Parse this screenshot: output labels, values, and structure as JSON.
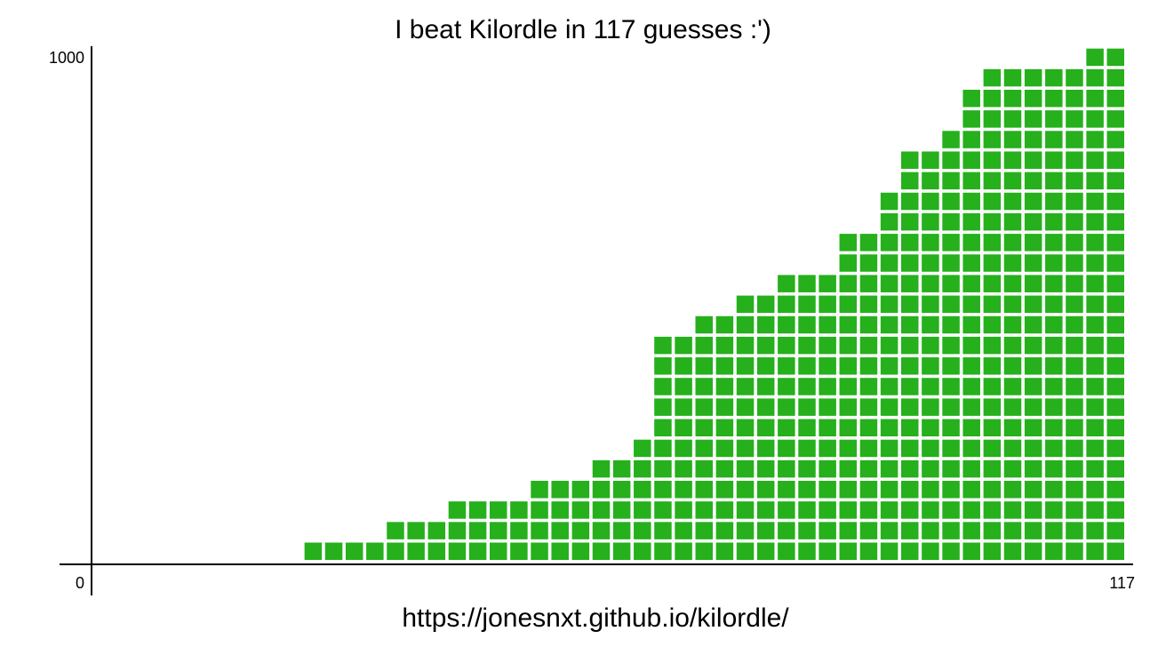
{
  "chart_data": {
    "type": "bar",
    "title": "I beat Kilordle in 117 guesses :')",
    "footer": "https://jonesnxt.github.io/kilordle/",
    "values": [
      40,
      40,
      40,
      40,
      80,
      80,
      80,
      120,
      120,
      120,
      120,
      160,
      160,
      160,
      200,
      200,
      240,
      440,
      440,
      480,
      480,
      520,
      520,
      560,
      560,
      560,
      640,
      640,
      720,
      800,
      800,
      840,
      920,
      960,
      960,
      960,
      960,
      960,
      1000,
      1000
    ],
    "color": "#25b01c",
    "ylim": [
      0,
      1000
    ],
    "yticks": [
      1000
    ],
    "xlim": [
      0,
      117
    ],
    "xticks": [
      0,
      117
    ]
  }
}
